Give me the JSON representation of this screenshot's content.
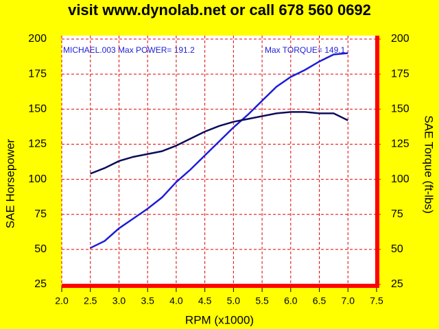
{
  "chart_data": {
    "type": "line",
    "title": "visit www.dynolab.net or call  678 560 0692",
    "annotations": [
      "MICHAEL.003  Max POWER= 191.2",
      "Max TORQUE= 149.1"
    ],
    "xlabel": "RPM (x1000)",
    "ylabel": "SAE Horsepower",
    "y2label": "SAE Torque (ft-lbs)",
    "xlim": [
      2,
      7.5
    ],
    "xticks": [
      {
        "value": 2,
        "label": "2.0"
      },
      2.5,
      {
        "value": 3,
        "label": "3.0"
      },
      3.5,
      {
        "value": 4,
        "label": "4.0"
      },
      4.5,
      {
        "value": 5,
        "label": "5.0"
      },
      5.5,
      {
        "value": 6,
        "label": "6.0"
      },
      6.5,
      {
        "value": 7,
        "label": "7.0"
      },
      7.5
    ],
    "ylim": [
      25,
      200
    ],
    "yticks": [
      25,
      50,
      75,
      100,
      125,
      150,
      175,
      200
    ],
    "y2lim": [
      25,
      200
    ],
    "y2ticks": [
      25,
      50,
      75,
      100,
      125,
      150,
      175,
      200
    ],
    "grid": true,
    "series": [
      {
        "color": "#1c1cd8",
        "x": [
          2.5,
          2.75,
          3.0,
          3.25,
          3.5,
          3.75,
          4.0,
          4.25,
          4.5,
          4.75,
          5.0,
          5.25,
          5.5,
          5.75,
          6.0,
          6.25,
          6.5,
          6.75,
          7.0
        ],
        "values": [
          51,
          56,
          65,
          72,
          79,
          87,
          98,
          107,
          117,
          127,
          137,
          146,
          156,
          166,
          173,
          178,
          184,
          189,
          190
        ]
      },
      {
        "color": "#0c0c5a",
        "axis": "y2",
        "x": [
          2.5,
          2.75,
          3.0,
          3.25,
          3.5,
          3.75,
          4.0,
          4.25,
          4.5,
          4.75,
          5.0,
          5.25,
          5.5,
          5.75,
          6.0,
          6.25,
          6.5,
          6.75,
          7.0
        ],
        "values": [
          104,
          108,
          113,
          116,
          118,
          120,
          124,
          129,
          134,
          138,
          141,
          143,
          145,
          147,
          148,
          148,
          147,
          147,
          142
        ]
      }
    ]
  }
}
